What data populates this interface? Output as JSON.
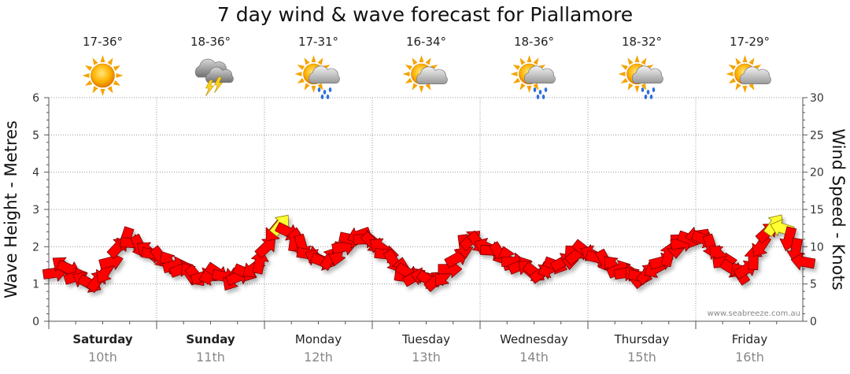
{
  "title": "7 day wind & wave forecast for Piallamore",
  "watermark": "www.seabreeze.com.au",
  "colors": {
    "arrow_fill": "#ff0000",
    "arrow_stroke": "#7a0000",
    "strong_fill": "#ffff33",
    "strong_stroke": "#8a7a00",
    "grid": "#9a9a9a"
  },
  "days": [
    {
      "name": "Saturday",
      "date": "10th",
      "bold": true,
      "temp": "17-36°",
      "icon": "sunny-icon"
    },
    {
      "name": "Sunday",
      "date": "11th",
      "bold": true,
      "temp": "18-36°",
      "icon": "storm-icon"
    },
    {
      "name": "Monday",
      "date": "12th",
      "bold": false,
      "temp": "17-31°",
      "icon": "sun-shower-icon"
    },
    {
      "name": "Tuesday",
      "date": "13th",
      "bold": false,
      "temp": "16-34°",
      "icon": "partly-cloudy-icon"
    },
    {
      "name": "Wednesday",
      "date": "14th",
      "bold": false,
      "temp": "18-36°",
      "icon": "sun-shower-icon"
    },
    {
      "name": "Thursday",
      "date": "15th",
      "bold": false,
      "temp": "18-32°",
      "icon": "sun-shower-icon"
    },
    {
      "name": "Friday",
      "date": "16th",
      "bold": false,
      "temp": "17-29°",
      "icon": "partly-cloudy-icon"
    }
  ],
  "chart_data": {
    "type": "line",
    "title": "7 day wind & wave forecast for Piallamore",
    "ylabel_left": "Wave Height - Metres",
    "ylabel_right": "Wind Speed - Knots",
    "yticks_left": [
      "0",
      "1",
      "2",
      "3",
      "4",
      "5",
      "6"
    ],
    "yticks_right": [
      "0",
      "5",
      "10",
      "15",
      "20",
      "25",
      "30"
    ],
    "ylim_left": [
      0,
      6
    ],
    "ylim_right": [
      0,
      30
    ],
    "grid": true,
    "series": [
      {
        "name": "",
        "unit": "knots",
        "values": [
          6.5,
          7.5,
          7,
          6,
          5.5,
          5,
          5.5,
          6.5,
          8,
          10,
          11,
          10.5,
          10,
          9.5,
          9,
          8.5,
          8,
          7.5,
          7,
          6.5,
          6,
          6,
          6,
          6.5,
          6,
          5.5,
          6,
          6.5,
          7,
          8,
          10,
          12,
          13,
          12,
          11,
          10,
          9,
          8.5,
          8,
          8.5,
          9,
          10,
          11,
          11.5,
          11,
          10.5,
          10,
          9,
          8,
          7,
          6.5,
          6,
          6,
          5.5,
          5.5,
          6,
          7,
          8.5,
          10,
          11,
          10.5,
          10,
          9.5,
          9,
          8.5,
          8,
          7.5,
          7,
          6.5,
          6.5,
          7,
          7.5,
          8,
          8.5,
          9,
          9.5,
          9,
          8.5,
          8,
          7.5,
          7,
          6.5,
          6,
          6,
          6.5,
          7,
          8,
          9,
          10,
          10.5,
          11,
          11.5,
          11,
          10,
          9,
          8,
          7,
          6.5,
          7,
          8.5,
          10,
          12,
          13,
          12.5,
          11,
          9.5,
          8
        ]
      }
    ]
  }
}
